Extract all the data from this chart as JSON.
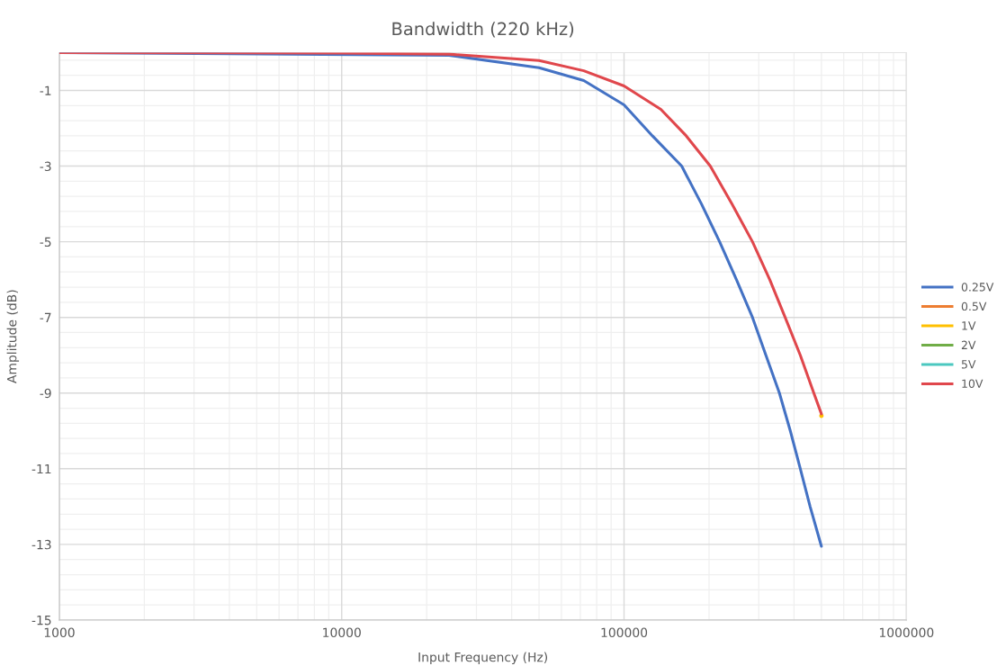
{
  "chart_data": {
    "type": "line",
    "title": "Bandwidth (220 kHz)",
    "xlabel": "Input Frequency (Hz)",
    "ylabel": "Amplitude (dB)",
    "log": "x",
    "xlim": [
      1000,
      1000000
    ],
    "xticks": [
      1000,
      10000,
      100000,
      1000000
    ],
    "ylim": [
      -15,
      0
    ],
    "yticks": [
      -15,
      -13,
      -11,
      -9,
      -7,
      -5,
      -3,
      -1
    ],
    "grid": true,
    "legend": "right",
    "marker": "none",
    "line_style": "solid",
    "series": [
      {
        "name": "0.25V",
        "color": "#4472c4",
        "x": [
          1000,
          24000,
          50000,
          72000,
          100000,
          126000,
          160000,
          188000,
          218000,
          250000,
          285000,
          318000,
          355000,
          388000,
          421000,
          456000,
          500000
        ],
        "values": [
          0,
          -0.07,
          -0.4,
          -0.74,
          -1.38,
          -2.2,
          -3,
          -4,
          -5,
          -6,
          -7,
          -8,
          -9,
          -10,
          -11,
          -12,
          -13.05
        ]
      },
      {
        "name": "0.5V",
        "color": "#ed7d31"
      },
      {
        "name": "1V",
        "color": "#ffc000",
        "x": [
          500000
        ],
        "values": [
          -9.6
        ]
      },
      {
        "name": "2V",
        "color": "#70ad47"
      },
      {
        "name": "5V",
        "color": "#4bc8c0"
      },
      {
        "name": "10V",
        "color": "#e0474c",
        "x": [
          1000,
          10000,
          24000,
          50000,
          72000,
          100000,
          135000,
          166000,
          202000,
          241000,
          285000,
          328000,
          372000,
          421000,
          470000,
          500000
        ],
        "values": [
          0,
          -0.01,
          -0.04,
          -0.21,
          -0.48,
          -0.88,
          -1.5,
          -2.2,
          -3,
          -4,
          -5,
          -6,
          -7,
          -8,
          -9,
          -9.55
        ]
      }
    ]
  }
}
